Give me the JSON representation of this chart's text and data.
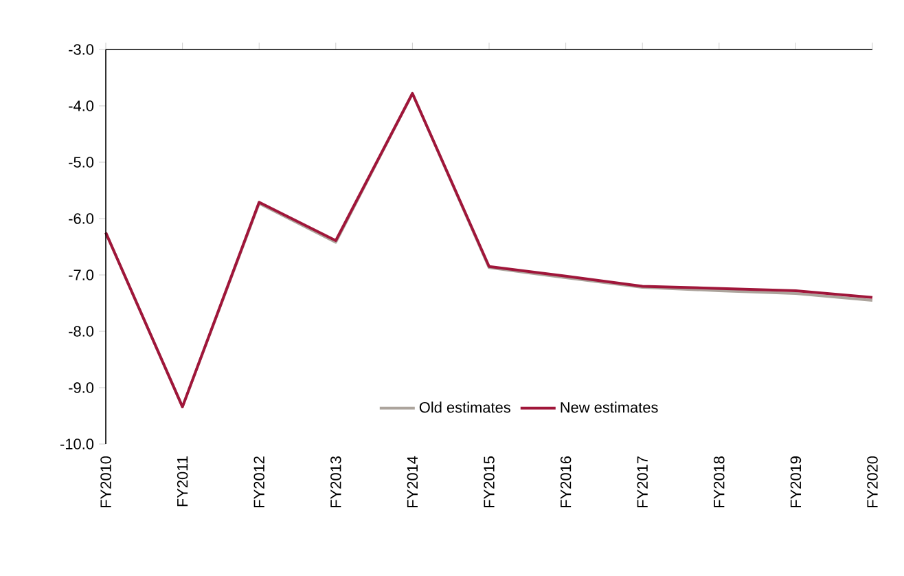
{
  "chart_data": {
    "type": "line",
    "categories": [
      "FY2010",
      "FY2011",
      "FY2012",
      "FY2013",
      "FY2014",
      "FY2015",
      "FY2016",
      "FY2017",
      "FY2018",
      "FY2019",
      "FY2020"
    ],
    "series": [
      {
        "name": "Old estimates",
        "color": "#aca49c",
        "values": [
          -6.25,
          -9.34,
          -5.73,
          -6.42,
          -3.78,
          -6.87,
          -7.05,
          -7.22,
          -7.28,
          -7.33,
          -7.45
        ]
      },
      {
        "name": "New estimates",
        "color": "#a0163a",
        "values": [
          -6.25,
          -9.34,
          -5.71,
          -6.39,
          -3.78,
          -6.85,
          -7.02,
          -7.2,
          -7.24,
          -7.28,
          -7.4
        ]
      }
    ],
    "ylim": [
      -10,
      -3
    ],
    "yticks": [
      {
        "value": -10,
        "label": "-10.0"
      },
      {
        "value": -9,
        "label": "-9.0"
      },
      {
        "value": -8,
        "label": "-8.0"
      },
      {
        "value": -7,
        "label": "-7.0"
      },
      {
        "value": -6,
        "label": "-6.0"
      },
      {
        "value": -5,
        "label": "-5.0"
      },
      {
        "value": -4,
        "label": "-4.0"
      },
      {
        "value": -3,
        "label": "-3.0"
      }
    ],
    "grid": false,
    "legend": "bottom",
    "marker": "none",
    "line_style": "solid"
  }
}
